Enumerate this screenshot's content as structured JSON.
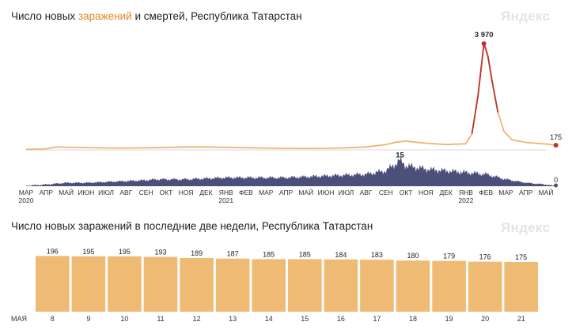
{
  "chart1": {
    "title_prefix": "Число новых ",
    "title_cases": "заражений",
    "title_middle": " и смертей",
    "title_suffix": ", Республика Татарстан",
    "watermark": "Яндекс",
    "colors": {
      "cases": "#f0b474",
      "peak_line": "#b9362c",
      "deaths": "#4b4f7a"
    }
  },
  "chart2": {
    "title": "Число новых заражений в последние две недели, Республика Татарстан",
    "watermark": "Яндекс",
    "colors": {
      "bar": "#efbb74",
      "weekend_label": "#e0442c"
    }
  },
  "chart_data": [
    {
      "type": "line",
      "title": "Число новых заражений и смертей, Республика Татарстан",
      "x_ticks": [
        "МАР",
        "АПР",
        "МАЙ",
        "ИЮН",
        "ИЮЛ",
        "АВГ",
        "СЕН",
        "ОКТ",
        "НОЯ",
        "ДЕК",
        "ЯНВ",
        "ФЕВ",
        "МАР",
        "АПР",
        "МАЙ",
        "ИЮН",
        "ИЮЛ",
        "АВГ",
        "СЕН",
        "ОКТ",
        "НОЯ",
        "ДЕК",
        "ЯНВ",
        "ФЕВ",
        "МАР",
        "АПР",
        "МАЙ"
      ],
      "year_labels": [
        {
          "tick": 0,
          "label": "2020"
        },
        {
          "tick": 10,
          "label": "2021"
        },
        {
          "tick": 22,
          "label": "2022"
        }
      ],
      "series": [
        {
          "name": "заражений",
          "x_month_index": [
            0,
            1,
            1.5,
            2,
            3,
            4,
            5,
            6,
            7,
            8,
            9,
            10,
            11,
            12,
            13,
            14,
            15,
            16,
            17,
            18,
            18.5,
            19,
            19.5,
            20,
            21,
            22,
            22.3,
            22.6,
            22.9,
            23.1,
            23.3,
            23.6,
            23.9,
            24.3,
            25,
            26,
            26.5
          ],
          "values": [
            20,
            40,
            110,
            100,
            90,
            75,
            70,
            80,
            95,
            110,
            110,
            100,
            85,
            70,
            60,
            55,
            60,
            80,
            110,
            200,
            290,
            330,
            290,
            250,
            200,
            230,
            600,
            2000,
            3970,
            3500,
            2600,
            1400,
            700,
            380,
            280,
            220,
            175
          ],
          "peak_label": "3 970",
          "last_label": "175",
          "ylim": [
            0,
            4300
          ]
        },
        {
          "name": "смертей",
          "x_month_index": [
            0,
            1,
            2,
            3,
            4,
            5,
            6,
            6.5,
            7,
            8,
            9,
            10,
            11,
            12,
            13,
            14,
            15,
            16,
            17,
            18,
            18.7,
            19,
            19.5,
            20,
            21,
            22,
            23,
            24,
            25,
            26,
            26.5
          ],
          "values": [
            0.3,
            1,
            2,
            2,
            2.5,
            3,
            3.5,
            4,
            4,
            4,
            4.5,
            5,
            5,
            5,
            5,
            5.5,
            6,
            6.5,
            7,
            9,
            15,
            12,
            11,
            10,
            9,
            8,
            7,
            4,
            2,
            1,
            0
          ],
          "peak_label": "15",
          "last_label": "0",
          "ylim": [
            0,
            17
          ]
        }
      ]
    },
    {
      "type": "bar",
      "title": "Число новых заражений в последние две недели, Республика Татарстан",
      "month_label": "МАЯ",
      "categories": [
        "8",
        "9",
        "10",
        "11",
        "12",
        "13",
        "14",
        "15",
        "16",
        "17",
        "18",
        "19",
        "20",
        "21"
      ],
      "values": [
        196,
        195,
        195,
        193,
        189,
        187,
        185,
        185,
        184,
        183,
        180,
        179,
        176,
        175
      ],
      "weekend_days": [
        "8",
        "14",
        "15",
        "21"
      ],
      "ylim": [
        0,
        200
      ]
    }
  ]
}
